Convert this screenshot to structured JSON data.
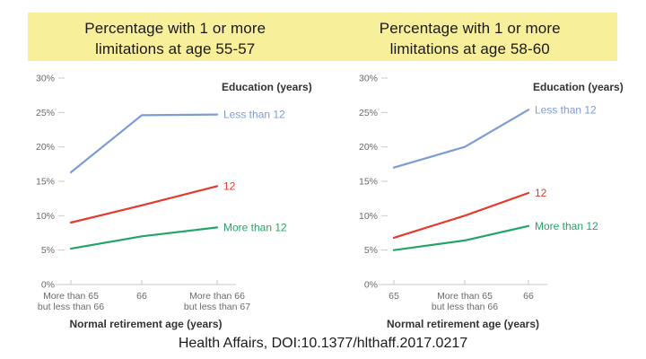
{
  "colors": {
    "banner_bg": "#F8EF9B",
    "axis_line": "#C9C9C9",
    "tick_label": "#6A6A6A",
    "strong_label": "#333333",
    "series_blue": "#7D9CD3",
    "series_red": "#E33B2C",
    "series_green": "#23A566"
  },
  "chart_data": [
    {
      "type": "line",
      "title": "Percentage with 1 or more limitations at age 55-57",
      "title_lines": [
        "Percentage with 1 or more",
        "limitations at age 55-57"
      ],
      "legend_title": "Education (years)",
      "xlabel": "Normal retirement age (years)",
      "categories": [
        "More than 65\nbut less than 66",
        "66",
        "More than 66\nbut less than 67"
      ],
      "ylim": [
        0,
        30
      ],
      "ytick_step": 5,
      "ytick_suffix": "%",
      "grid": false,
      "legend_position": "right-of-line-ends",
      "series": [
        {
          "name": "Less than 12",
          "color": "#7D9CD3",
          "values": [
            16.3,
            24.6,
            24.7
          ]
        },
        {
          "name": "12",
          "color": "#E33B2C",
          "values": [
            9.0,
            11.5,
            14.3
          ]
        },
        {
          "name": "More than 12",
          "color": "#23A566",
          "values": [
            5.2,
            7.0,
            8.3
          ]
        }
      ]
    },
    {
      "type": "line",
      "title": "Percentage with 1 or more limitations at age 58-60",
      "title_lines": [
        "Percentage with 1 or more",
        "limitations at age 58-60"
      ],
      "legend_title": "Education (years)",
      "xlabel": "Normal retirement age (years)",
      "categories": [
        "65",
        "More than 65\nbut less than 66",
        "66"
      ],
      "ylim": [
        0,
        30
      ],
      "ytick_step": 5,
      "ytick_suffix": "%",
      "grid": false,
      "legend_position": "right-of-line-ends",
      "series": [
        {
          "name": "Less than 12",
          "color": "#7D9CD3",
          "values": [
            17.0,
            20.0,
            25.4
          ]
        },
        {
          "name": "12",
          "color": "#E33B2C",
          "values": [
            6.8,
            10.0,
            13.3
          ]
        },
        {
          "name": "More than 12",
          "color": "#23A566",
          "values": [
            5.0,
            6.4,
            8.5
          ]
        }
      ]
    }
  ],
  "footer": {
    "text": "Health Affairs, DOI:10.1377/hlthaff.2017.0217"
  }
}
